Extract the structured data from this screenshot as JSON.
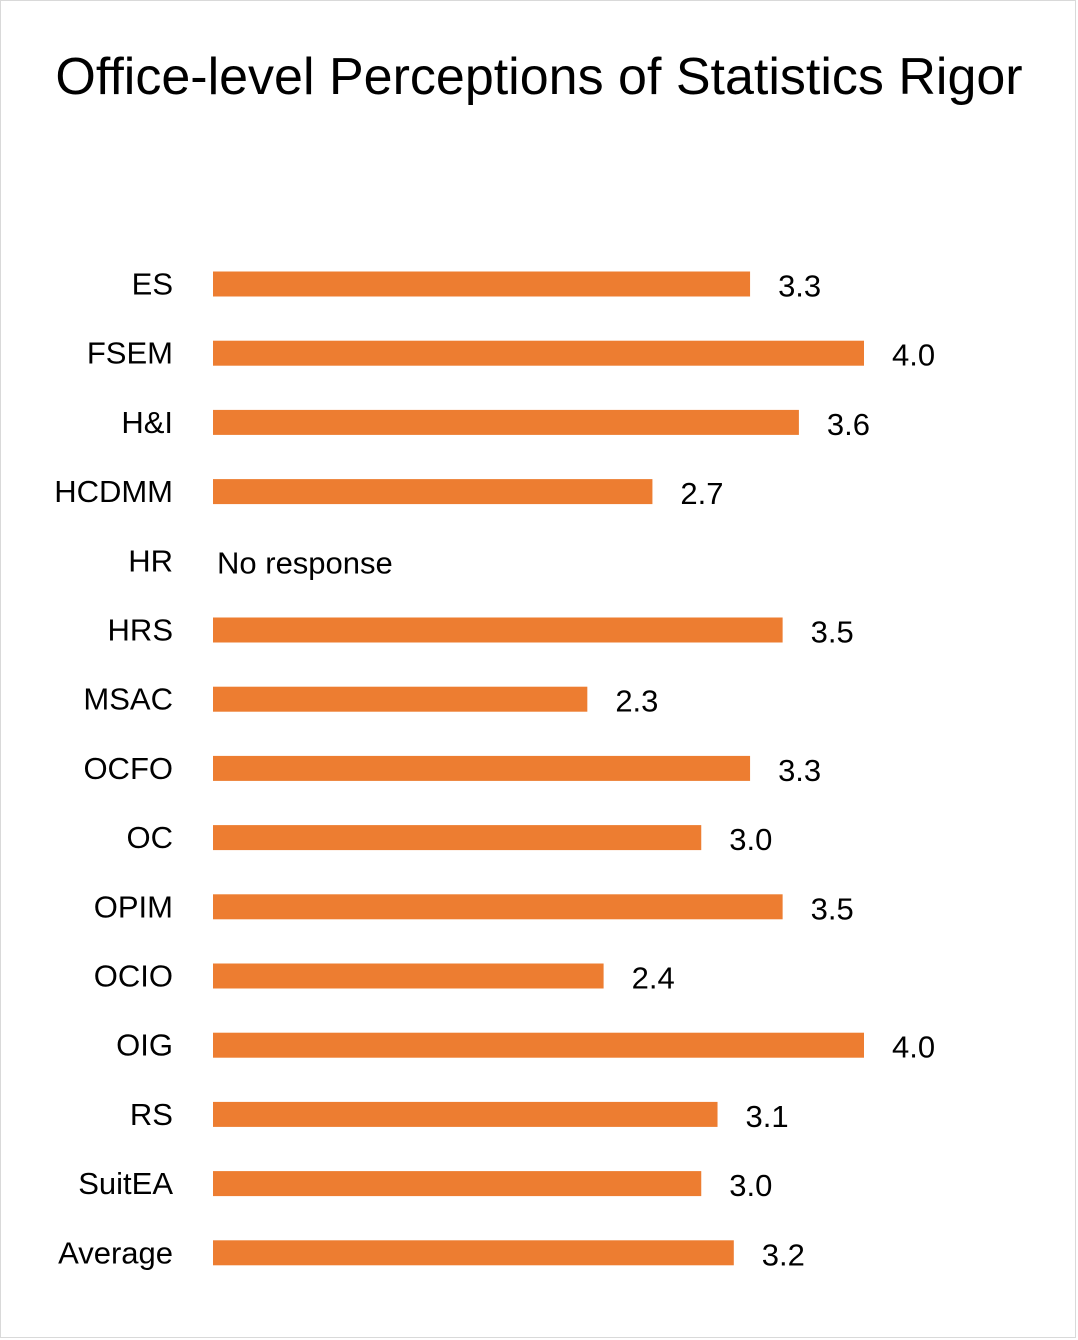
{
  "chart_data": {
    "type": "bar",
    "orientation": "horizontal",
    "title": "Office-level Perceptions of Statistics Rigor",
    "categories": [
      "ES",
      "FSEM",
      "H&I",
      "HCDMM",
      "HR",
      "HRS",
      "MSAC",
      "OCFO",
      "OC",
      "OPIM",
      "OCIO",
      "OIG",
      "RS",
      "SuitEA",
      "Average"
    ],
    "values": [
      3.3,
      4.0,
      3.6,
      2.7,
      null,
      3.5,
      2.3,
      3.3,
      3.0,
      3.5,
      2.4,
      4.0,
      3.1,
      3.0,
      3.2
    ],
    "value_labels": [
      "3.3",
      "4.0",
      "3.6",
      "2.7",
      "No response",
      "3.5",
      "2.3",
      "3.3",
      "3.0",
      "3.5",
      "2.4",
      "4.0",
      "3.1",
      "3.0",
      "3.2"
    ],
    "xlabel": "",
    "ylabel": "",
    "xlim": [
      0,
      4.0
    ],
    "grid": false,
    "legend": "none",
    "bar_color": "#ED7D31"
  }
}
